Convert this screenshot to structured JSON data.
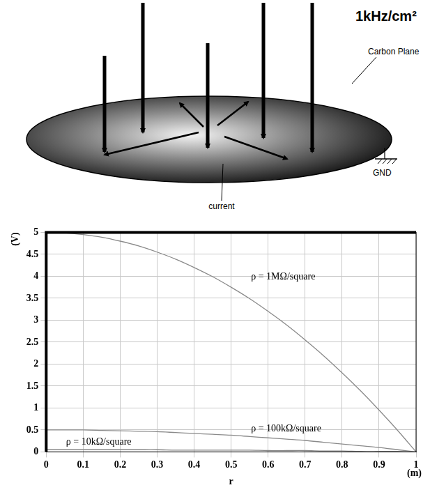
{
  "diagram": {
    "rate_label": "1kHz/cm²",
    "plane_label": "Carbon Plane",
    "current_label": "current",
    "ground_label": "GND"
  },
  "chart_data": {
    "type": "line",
    "xlabel": "r",
    "ylabel": "(V)",
    "annotations": [
      "(m)"
    ],
    "x": [
      0,
      0.05,
      0.1,
      0.15,
      0.2,
      0.25,
      0.3,
      0.35,
      0.4,
      0.45,
      0.5,
      0.55,
      0.6,
      0.65,
      0.7,
      0.75,
      0.8,
      0.85,
      0.9,
      0.95,
      1
    ],
    "series": [
      {
        "name": "ρ = 1MΩ/square",
        "color": "#8a8a8a",
        "values": [
          5,
          4.99,
          4.95,
          4.89,
          4.8,
          4.69,
          4.55,
          4.39,
          4.2,
          3.99,
          3.75,
          3.49,
          3.2,
          2.89,
          2.55,
          2.19,
          1.8,
          1.39,
          0.95,
          0.49,
          0
        ]
      },
      {
        "name": "ρ = 100kΩ/square",
        "color": "#8a8a8a",
        "values": [
          0.5,
          0.5,
          0.5,
          0.49,
          0.48,
          0.47,
          0.46,
          0.44,
          0.42,
          0.4,
          0.38,
          0.35,
          0.32,
          0.29,
          0.26,
          0.22,
          0.18,
          0.14,
          0.1,
          0.05,
          0
        ]
      },
      {
        "name": "ρ = 10kΩ/square",
        "color": "#8a8a8a",
        "values": [
          0.05,
          0.05,
          0.05,
          0.05,
          0.05,
          0.05,
          0.05,
          0.04,
          0.04,
          0.04,
          0.04,
          0.04,
          0.03,
          0.03,
          0.03,
          0.02,
          0.02,
          0.01,
          0.01,
          0.01,
          0
        ]
      }
    ],
    "xlim": [
      0,
      1
    ],
    "xticks": [
      0,
      0.1,
      0.2,
      0.3,
      0.4,
      0.5,
      0.6,
      0.7,
      0.8,
      0.9,
      1
    ],
    "ylim": [
      0,
      5
    ],
    "yticks": [
      0,
      0.5,
      1,
      1.5,
      2,
      2.5,
      3,
      3.5,
      4,
      4.5,
      5
    ],
    "grid": true
  }
}
